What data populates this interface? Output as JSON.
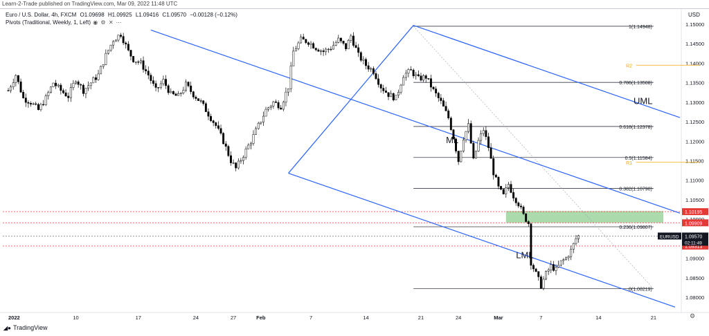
{
  "header": {
    "published": "Learn-2-Trade published on TradingView.com, Mar 09, 2022 11:48 UTC"
  },
  "symbol_line": {
    "name": "Euro / U.S. Dollar, 4h, FXCM",
    "open": "O1.09698",
    "high": "H1.09925",
    "low": "L1.09416",
    "close": "C1.09570",
    "change": "−0.00128 (−0.12%)"
  },
  "indicator_line": {
    "label": "Pivots (Traditional, Weekly, 1, Left)"
  },
  "currency": "USD",
  "footer": {
    "brand": "TradingView"
  },
  "colors": {
    "up": "#000000",
    "down": "#000000",
    "channel": "#2962ff",
    "fib": "#363a45",
    "pivot": "#f7a600",
    "zone": "#66bb6a",
    "red_dotted": "#e53935"
  },
  "chart_data": {
    "type": "candlestick",
    "symbol": "EURUSD",
    "timeframe": "4h",
    "ylim": [
      1.0765,
      1.1525
    ],
    "y_ticks": [
      1.15,
      1.145,
      1.14,
      1.135,
      1.13,
      1.125,
      1.12,
      1.115,
      1.11,
      1.105,
      1.1,
      1.095,
      1.09,
      1.085,
      1.08
    ],
    "x_ticks": [
      "2022",
      "10",
      "17",
      "24",
      "27",
      "Feb",
      "7",
      "14",
      "21",
      "24",
      "Mar",
      "7",
      "14",
      "21"
    ],
    "x_tick_index": [
      0,
      27,
      52,
      75,
      90,
      101,
      121,
      143,
      165,
      180,
      196,
      213,
      236,
      258
    ],
    "num_slots": 268,
    "close_path": [
      [
        0,
        1.133
      ],
      [
        3,
        1.137
      ],
      [
        6,
        1.131
      ],
      [
        9,
        1.13
      ],
      [
        12,
        1.128
      ],
      [
        15,
        1.131
      ],
      [
        18,
        1.135
      ],
      [
        21,
        1.133
      ],
      [
        24,
        1.1315
      ],
      [
        27,
        1.136
      ],
      [
        30,
        1.133
      ],
      [
        33,
        1.135
      ],
      [
        36,
        1.137
      ],
      [
        39,
        1.142
      ],
      [
        42,
        1.146
      ],
      [
        45,
        1.1475
      ],
      [
        48,
        1.143
      ],
      [
        50,
        1.141
      ],
      [
        53,
        1.14
      ],
      [
        56,
        1.137
      ],
      [
        59,
        1.133
      ],
      [
        62,
        1.1355
      ],
      [
        65,
        1.132
      ],
      [
        68,
        1.1315
      ],
      [
        71,
        1.1345
      ],
      [
        74,
        1.132
      ],
      [
        77,
        1.13
      ],
      [
        80,
        1.127
      ],
      [
        83,
        1.124
      ],
      [
        86,
        1.12
      ],
      [
        89,
        1.115
      ],
      [
        91,
        1.113
      ],
      [
        94,
        1.1165
      ],
      [
        97,
        1.12
      ],
      [
        100,
        1.124
      ],
      [
        103,
        1.128
      ],
      [
        106,
        1.13
      ],
      [
        109,
        1.129
      ],
      [
        112,
        1.134
      ],
      [
        114,
        1.143
      ],
      [
        117,
        1.146
      ],
      [
        120,
        1.1455
      ],
      [
        123,
        1.144
      ],
      [
        126,
        1.143
      ],
      [
        129,
        1.144
      ],
      [
        132,
        1.146
      ],
      [
        135,
        1.144
      ],
      [
        137,
        1.147
      ],
      [
        140,
        1.142
      ],
      [
        143,
        1.1395
      ],
      [
        146,
        1.138
      ],
      [
        149,
        1.134
      ],
      [
        152,
        1.132
      ],
      [
        155,
        1.131
      ],
      [
        158,
        1.137
      ],
      [
        161,
        1.138
      ],
      [
        164,
        1.136
      ],
      [
        167,
        1.1365
      ],
      [
        170,
        1.133
      ],
      [
        173,
        1.13
      ],
      [
        176,
        1.126
      ],
      [
        178,
        1.121
      ],
      [
        180,
        1.115
      ],
      [
        182,
        1.121
      ],
      [
        184,
        1.124
      ],
      [
        186,
        1.115
      ],
      [
        188,
        1.12
      ],
      [
        190,
        1.123
      ],
      [
        192,
        1.1185
      ],
      [
        194,
        1.112
      ],
      [
        196,
        1.108
      ],
      [
        198,
        1.106
      ],
      [
        200,
        1.109
      ],
      [
        202,
        1.106
      ],
      [
        204,
        1.104
      ],
      [
        206,
        1.101
      ],
      [
        208,
        1.099
      ],
      [
        209,
        1.089
      ],
      [
        211,
        1.086
      ],
      [
        213,
        1.083
      ],
      [
        215,
        1.086
      ],
      [
        217,
        1.088
      ],
      [
        219,
        1.087
      ],
      [
        221,
        1.089
      ],
      [
        223,
        1.09
      ],
      [
        225,
        1.092
      ],
      [
        227,
        1.095
      ],
      [
        228,
        1.0957
      ]
    ],
    "fib_levels": [
      {
        "level": "1",
        "price": 1.14948,
        "label": "1(1.14948)"
      },
      {
        "level": "0.786",
        "price": 1.13508,
        "label": "0.786(1.13508)"
      },
      {
        "level": "0.618",
        "price": 1.12378,
        "label": "0.618(1.12378)"
      },
      {
        "level": "0.5",
        "price": 1.11584,
        "label": "0.5(1.11584)"
      },
      {
        "level": "0.382",
        "price": 1.1079,
        "label": "0.382(1.10790)"
      },
      {
        "level": "0.236",
        "price": 1.09807,
        "label": "0.236(1.09807)"
      },
      {
        "level": "0",
        "price": 1.08219,
        "label": "0(1.08219)"
      }
    ],
    "pivots": [
      {
        "label": "R2",
        "price": 1.1395
      },
      {
        "label": "R1",
        "price": 1.1146
      }
    ],
    "horizontal_levels": [
      {
        "price": 1.10195,
        "label": "1.10195",
        "style": "dotted",
        "color": "#e53935"
      },
      {
        "price": 1.09909,
        "label": "1.09909",
        "style": "dotted",
        "color": "#e53935"
      },
      {
        "price": 1.09313,
        "label": "1.09313",
        "style": "dotted",
        "color": "#e53935"
      },
      {
        "price": 1.0957,
        "label": "1.09570",
        "style": "dotted",
        "color": "#787b86"
      }
    ],
    "zone": {
      "price_top": 1.1021,
      "price_bottom": 1.0991
    },
    "channel_labels": [
      "UML",
      "ML",
      "LML"
    ],
    "price_tags": [
      {
        "symbol": "EURUSD",
        "price": "1.09570",
        "countdown": "02:11:49"
      }
    ]
  }
}
